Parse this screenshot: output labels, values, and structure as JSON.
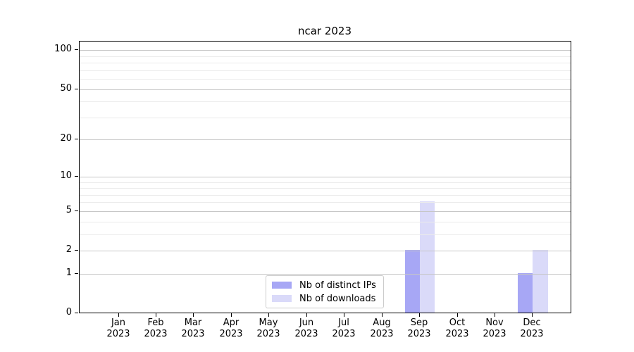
{
  "title": "ncar 2023",
  "chart_data": {
    "type": "bar",
    "title": "ncar 2023",
    "categories": [
      "Jan 2023",
      "Feb 2023",
      "Mar 2023",
      "Apr 2023",
      "May 2023",
      "Jun 2023",
      "Jul 2023",
      "Aug 2023",
      "Sep 2023",
      "Oct 2023",
      "Nov 2023",
      "Dec 2023"
    ],
    "series": [
      {
        "name": "Nb of distinct IPs",
        "color": "#a7a7f5",
        "values": [
          0,
          0,
          0,
          0,
          0,
          0,
          0,
          0,
          2,
          0,
          0,
          1
        ]
      },
      {
        "name": "Nb of downloads",
        "color": "#dadaf9",
        "values": [
          0,
          0,
          0,
          0,
          0,
          0,
          0,
          0,
          6,
          0,
          0,
          2
        ]
      }
    ],
    "yscale": "log1p",
    "ylim": [
      0,
      116
    ],
    "y_major_ticks": [
      0,
      1,
      2,
      5,
      10,
      20,
      50,
      100
    ],
    "y_minor_gridlines": [
      3,
      4,
      6,
      7,
      8,
      9,
      30,
      40,
      60,
      70,
      80,
      90
    ],
    "grid": "horizontal major and minor",
    "legend_position": "lower center inside axes",
    "style": {
      "major_grid_color": "#c6c6c6",
      "minor_grid_color": "#ebebeb",
      "spine_color": "#000000",
      "legend_border_color": "#cccccc",
      "background": "#ffffff"
    }
  }
}
